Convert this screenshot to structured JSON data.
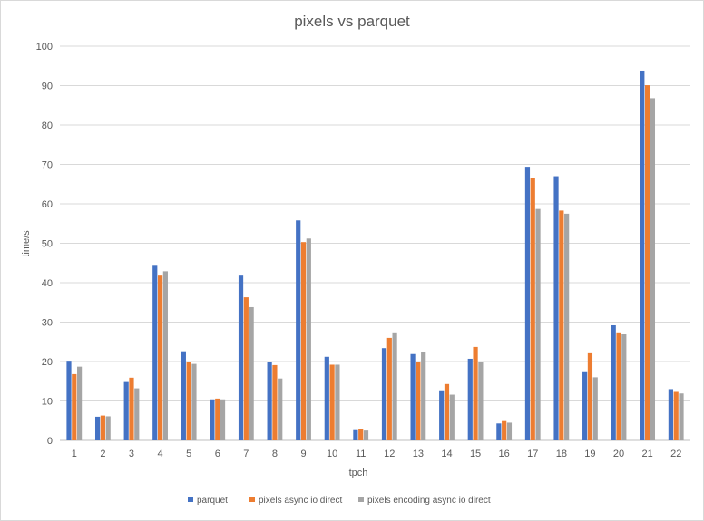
{
  "chart_data": {
    "type": "bar",
    "title": "pixels vs parquet",
    "xlabel": "tpch",
    "ylabel": "time/s",
    "ylim": [
      0,
      100
    ],
    "yticks": [
      0,
      10,
      20,
      30,
      40,
      50,
      60,
      70,
      80,
      90,
      100
    ],
    "grid": true,
    "legend_position": "bottom",
    "categories": [
      "1",
      "2",
      "3",
      "4",
      "5",
      "6",
      "7",
      "8",
      "9",
      "10",
      "11",
      "12",
      "13",
      "14",
      "15",
      "16",
      "17",
      "18",
      "19",
      "20",
      "21",
      "22"
    ],
    "series": [
      {
        "name": "parquet",
        "color": "#4472c4",
        "values": [
          20.2,
          6.0,
          14.8,
          44.3,
          22.6,
          10.4,
          41.8,
          19.8,
          55.8,
          21.2,
          2.6,
          23.4,
          21.9,
          12.7,
          20.7,
          4.3,
          69.4,
          67.0,
          17.3,
          29.2,
          93.8,
          13.0
        ]
      },
      {
        "name": "pixels async io direct",
        "color": "#ed7d31",
        "values": [
          16.8,
          6.3,
          15.9,
          41.8,
          19.8,
          10.6,
          36.3,
          19.1,
          50.3,
          19.2,
          2.8,
          26.0,
          19.8,
          14.3,
          23.7,
          4.9,
          66.5,
          58.3,
          22.1,
          27.4,
          90.1,
          12.3
        ]
      },
      {
        "name": "pixels encoding async io direct",
        "color": "#a5a5a5",
        "values": [
          18.7,
          6.1,
          13.2,
          42.9,
          19.4,
          10.4,
          33.8,
          15.7,
          51.2,
          19.2,
          2.5,
          27.4,
          22.3,
          11.6,
          20.0,
          4.5,
          58.7,
          57.5,
          16.0,
          26.9,
          86.8,
          11.9
        ]
      }
    ]
  }
}
